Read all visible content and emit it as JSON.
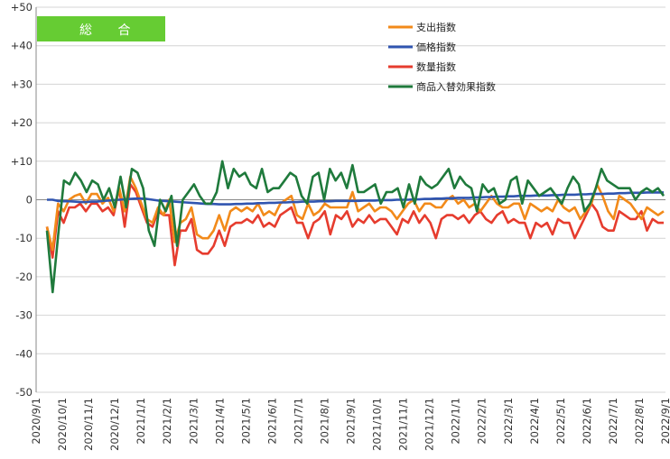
{
  "badge": {
    "label": "総 合",
    "color": "#66cc33"
  },
  "chart_data": {
    "type": "line",
    "title": "",
    "xlabel": "",
    "ylabel": "",
    "ylim": [
      -50,
      50
    ],
    "yticks": [
      "+50",
      "+40",
      "+30",
      "+20",
      "+10",
      "0",
      "-10",
      "-20",
      "-30",
      "-40",
      "-50"
    ],
    "xticks": [
      "2020/9/1",
      "2020/10/1",
      "2020/11/1",
      "2020/12/1",
      "2021/1/1",
      "2021/2/1",
      "2021/3/1",
      "2021/4/1",
      "2021/5/1",
      "2021/6/1",
      "2021/7/1",
      "2021/8/1",
      "2021/9/1",
      "2021/10/1",
      "2021/11/1",
      "2021/12/1",
      "2022/1/1",
      "2022/2/1",
      "2022/3/1",
      "2022/4/1",
      "2022/5/1",
      "2022/6/1",
      "2022/7/1",
      "2022/8/1",
      "2022/9/1"
    ],
    "legend_position": "top-right",
    "grid": true,
    "series": [
      {
        "name": "支出指数",
        "color": "#f28a1a",
        "values": [
          -7,
          -13,
          -1,
          -3,
          0,
          1,
          1.5,
          -1,
          1.5,
          1.5,
          -1,
          0.5,
          -3,
          3,
          -3,
          6,
          3,
          -1,
          -5,
          -6,
          -2,
          -4,
          0,
          -11,
          -6,
          -5,
          -2,
          -9,
          -10,
          -10,
          -8,
          -4,
          -8,
          -3,
          -2,
          -3,
          -2,
          -3,
          -1,
          -4,
          -3,
          -4,
          -1,
          0,
          1,
          -4,
          -5,
          -1,
          -4,
          -3,
          -1,
          -2,
          -2,
          -2,
          -2,
          2,
          -3,
          -2,
          -1,
          -3,
          -2,
          -2,
          -3,
          -5,
          -3,
          -1,
          0,
          -3,
          -1,
          -1,
          -2,
          -2,
          0,
          1,
          -1,
          0,
          -2,
          -1,
          -3,
          -1,
          1,
          -1,
          -2,
          -2,
          -1,
          -1,
          -5,
          -1,
          -2,
          -3,
          -2,
          -3,
          0,
          -2,
          -3,
          -2,
          -5,
          -3,
          -1,
          4,
          1,
          -3,
          -5,
          1,
          0,
          -1,
          -3,
          -5,
          -2,
          -3,
          -4,
          -3
        ]
      },
      {
        "name": "価格指数",
        "color": "#3055b0",
        "values": [
          0,
          0,
          -0.3,
          -0.4,
          -0.4,
          -0.5,
          -0.6,
          -0.6,
          -0.5,
          -0.5,
          -0.3,
          -0.2,
          -0.1,
          0,
          0.1,
          0.2,
          0.3,
          0.3,
          0.2,
          0,
          -0.2,
          -0.3,
          -0.4,
          -0.5,
          -0.6,
          -0.7,
          -0.8,
          -0.9,
          -1,
          -1.1,
          -1.1,
          -1.2,
          -1.2,
          -1.2,
          -1.1,
          -1.1,
          -1,
          -1,
          -0.9,
          -0.9,
          -0.8,
          -0.8,
          -0.7,
          -0.7,
          -0.6,
          -0.6,
          -0.5,
          -0.5,
          -0.5,
          -0.4,
          -0.4,
          -0.4,
          -0.3,
          -0.3,
          -0.3,
          -0.3,
          -0.3,
          -0.2,
          -0.2,
          -0.2,
          -0.1,
          -0.1,
          -0.1,
          0,
          0,
          0,
          0.1,
          0.1,
          0.2,
          0.2,
          0.3,
          0.3,
          0.4,
          0.4,
          0.5,
          0.5,
          0.5,
          0.6,
          0.6,
          0.7,
          0.7,
          0.8,
          0.8,
          0.9,
          0.9,
          1,
          1,
          1,
          1.1,
          1.1,
          1.1,
          1.2,
          1.2,
          1.3,
          1.3,
          1.3,
          1.4,
          1.4,
          1.5,
          1.5,
          1.5,
          1.6,
          1.6,
          1.7,
          1.7,
          1.8,
          1.8,
          1.8,
          1.9,
          1.9,
          1.9,
          1.9
        ]
      },
      {
        "name": "数量指数",
        "color": "#e63c2e",
        "values": [
          -7,
          -15,
          -3,
          -6,
          -2,
          -2,
          -1,
          -3,
          -1,
          -1,
          -3,
          -2,
          -4,
          3,
          -7,
          4,
          2,
          -2,
          -6,
          -7,
          -3,
          -4,
          -4,
          -17,
          -8,
          -8,
          -5,
          -13,
          -14,
          -14,
          -12,
          -8,
          -12,
          -7,
          -6,
          -6,
          -5,
          -6,
          -4,
          -7,
          -6,
          -7,
          -4,
          -3,
          -2,
          -6,
          -6,
          -10,
          -6,
          -5,
          -3,
          -9,
          -4,
          -5,
          -3,
          -7,
          -5,
          -6,
          -4,
          -6,
          -5,
          -5,
          -7,
          -9,
          -5,
          -6,
          -3,
          -6,
          -4,
          -6,
          -10,
          -5,
          -4,
          -4,
          -5,
          -4,
          -6,
          -4,
          -3,
          -5,
          -6,
          -4,
          -3,
          -6,
          -5,
          -6,
          -6,
          -10,
          -6,
          -7,
          -6,
          -9,
          -5,
          -6,
          -6,
          -10,
          -7,
          -4,
          -1,
          -3,
          -7,
          -8,
          -8,
          -3,
          -4,
          -5,
          -5,
          -3,
          -8,
          -5,
          -6,
          -6
        ]
      },
      {
        "name": "商品入替効果指数",
        "color": "#1f7a3c",
        "values": [
          -8,
          -24,
          -9,
          5,
          4,
          7,
          5,
          2,
          5,
          4,
          0,
          3,
          -2,
          6,
          -2,
          8,
          7,
          3,
          -8,
          -12,
          0,
          -3,
          1,
          -12,
          0,
          2,
          4,
          1,
          -1,
          -1,
          2,
          10,
          3,
          8,
          6,
          7,
          4,
          3,
          8,
          2,
          3,
          3,
          5,
          7,
          6,
          1,
          -1,
          6,
          7,
          0,
          8,
          5,
          7,
          3,
          9,
          2,
          2,
          3,
          4,
          -1,
          2,
          2,
          3,
          -2,
          4,
          -1,
          6,
          4,
          3,
          4,
          6,
          8,
          3,
          6,
          4,
          3,
          -3,
          4,
          2,
          3,
          -1,
          0,
          5,
          6,
          -1,
          5,
          3,
          1,
          2,
          3,
          1,
          -1,
          3,
          6,
          4,
          -3,
          -1,
          3,
          8,
          5,
          4,
          3,
          3,
          3,
          0,
          2,
          3,
          2,
          3,
          1
        ]
      }
    ]
  }
}
